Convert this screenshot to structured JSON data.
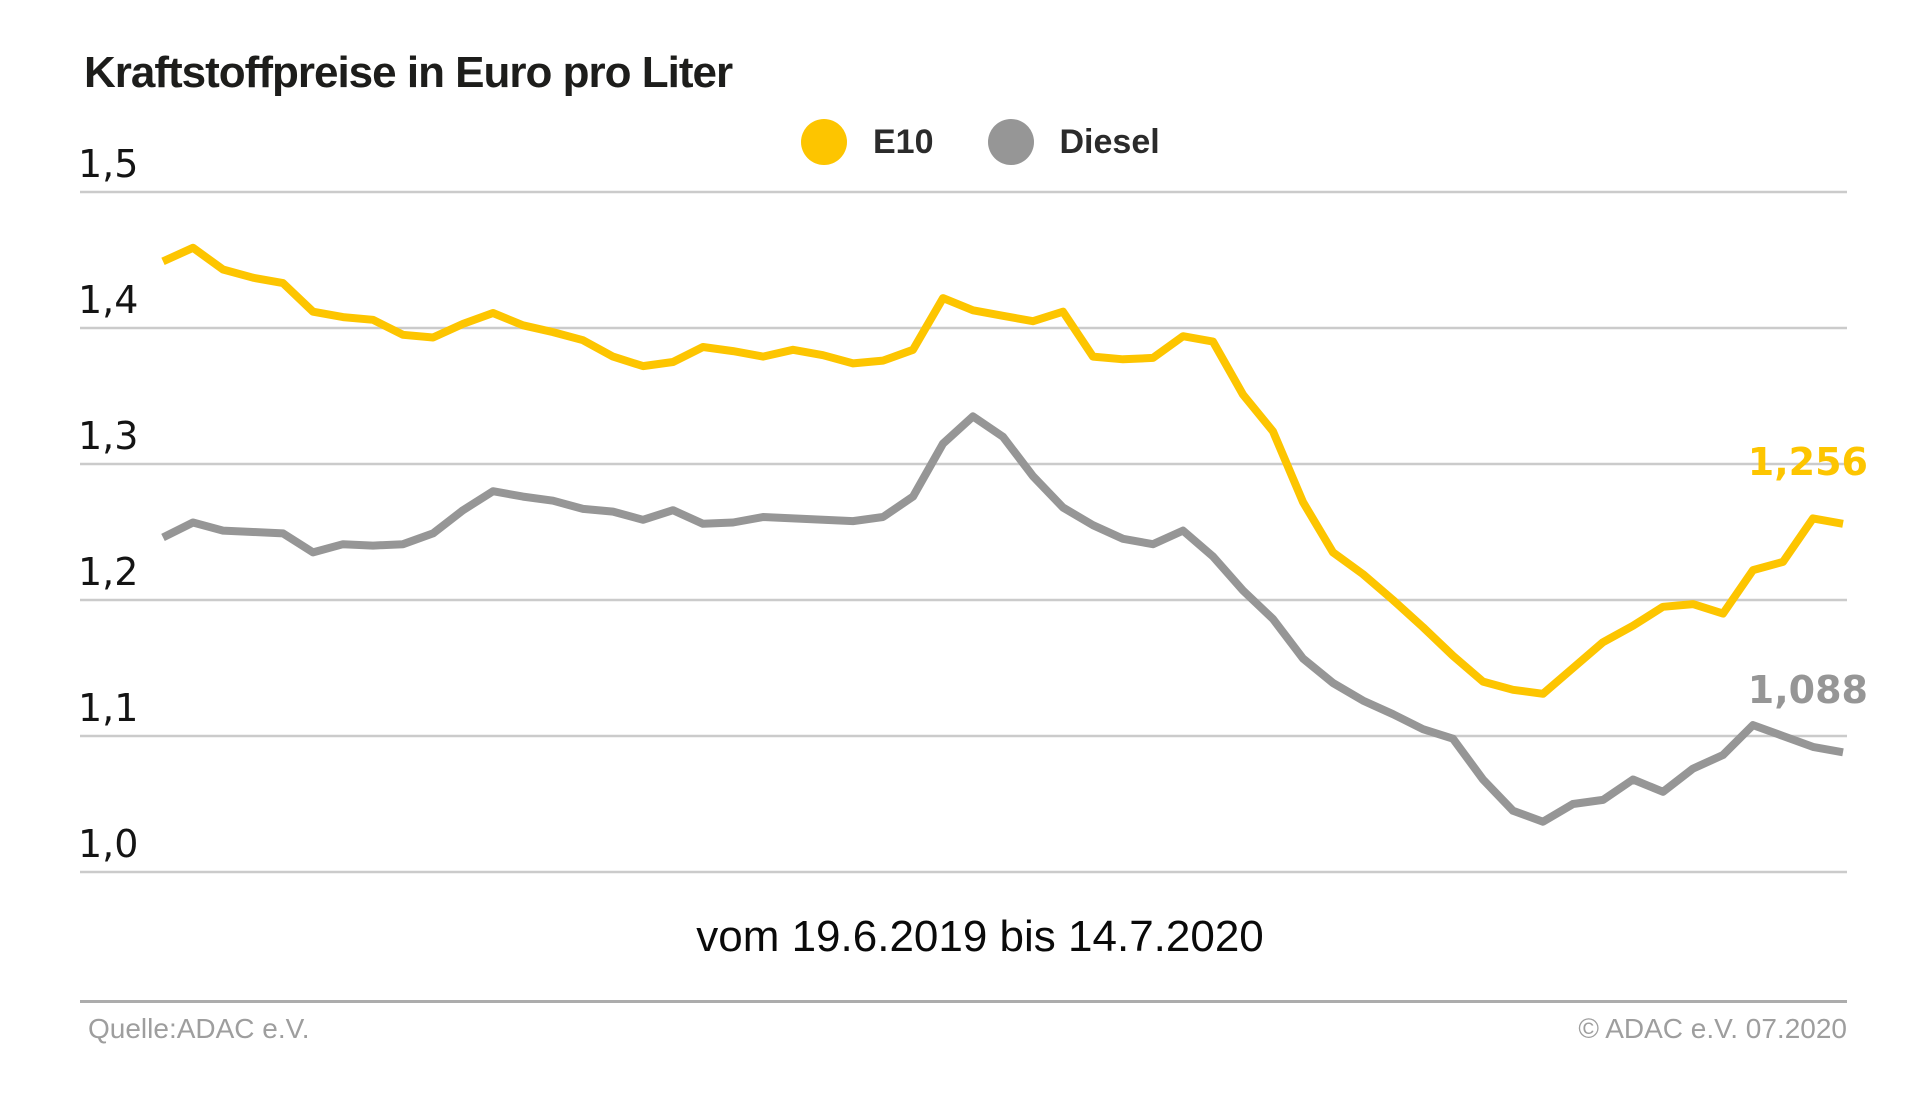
{
  "header": {
    "title": "Kraftstoffpreise in Euro pro Liter"
  },
  "chart_data": {
    "type": "line",
    "title": "Kraftstoffpreise in Euro pro Liter",
    "x_caption": "vom 19.6.2019 bis 14.7.2020",
    "x_start": "19.6.2019",
    "x_end": "14.7.2020",
    "ylabel": "Euro pro Liter",
    "ylim": [
      1.0,
      1.5
    ],
    "grid": true,
    "legend_position": "top-center",
    "y_ticks": [
      1.5,
      1.4,
      1.3,
      1.2,
      1.1,
      1.0
    ],
    "y_tick_labels": [
      "1,5",
      "1,4",
      "1,3",
      "1,2",
      "1,1",
      "1,0"
    ],
    "colors": {
      "e10": "#FDC500",
      "diesel": "#969696",
      "grid": "#CBCBCB",
      "axis_text": "#141414"
    },
    "series": [
      {
        "name": "E10",
        "color": "#FDC500",
        "end_label": "1,256",
        "final_value": 1.256,
        "values": [
          1.449,
          1.459,
          1.443,
          1.437,
          1.433,
          1.412,
          1.408,
          1.406,
          1.395,
          1.393,
          1.403,
          1.411,
          1.402,
          1.397,
          1.391,
          1.379,
          1.372,
          1.375,
          1.386,
          1.383,
          1.379,
          1.384,
          1.38,
          1.374,
          1.376,
          1.384,
          1.422,
          1.413,
          1.409,
          1.405,
          1.412,
          1.379,
          1.377,
          1.378,
          1.394,
          1.39,
          1.351,
          1.324,
          1.272,
          1.235,
          1.219,
          1.2,
          1.18,
          1.159,
          1.14,
          1.134,
          1.131,
          1.15,
          1.169,
          1.181,
          1.195,
          1.197,
          1.19,
          1.222,
          1.228,
          1.26,
          1.256
        ]
      },
      {
        "name": "Diesel",
        "color": "#969696",
        "end_label": "1,088",
        "final_value": 1.088,
        "values": [
          1.246,
          1.257,
          1.251,
          1.25,
          1.249,
          1.235,
          1.241,
          1.24,
          1.241,
          1.249,
          1.266,
          1.28,
          1.276,
          1.273,
          1.267,
          1.265,
          1.259,
          1.266,
          1.256,
          1.257,
          1.261,
          1.26,
          1.259,
          1.258,
          1.261,
          1.276,
          1.315,
          1.335,
          1.32,
          1.291,
          1.268,
          1.255,
          1.245,
          1.241,
          1.251,
          1.232,
          1.207,
          1.186,
          1.157,
          1.139,
          1.126,
          1.116,
          1.105,
          1.098,
          1.068,
          1.045,
          1.037,
          1.05,
          1.053,
          1.068,
          1.059,
          1.076,
          1.086,
          1.108,
          1.1,
          1.092,
          1.088
        ]
      }
    ]
  },
  "footer": {
    "source": "Quelle:ADAC e.V.",
    "copyright": "© ADAC e.V. 07.2020"
  }
}
